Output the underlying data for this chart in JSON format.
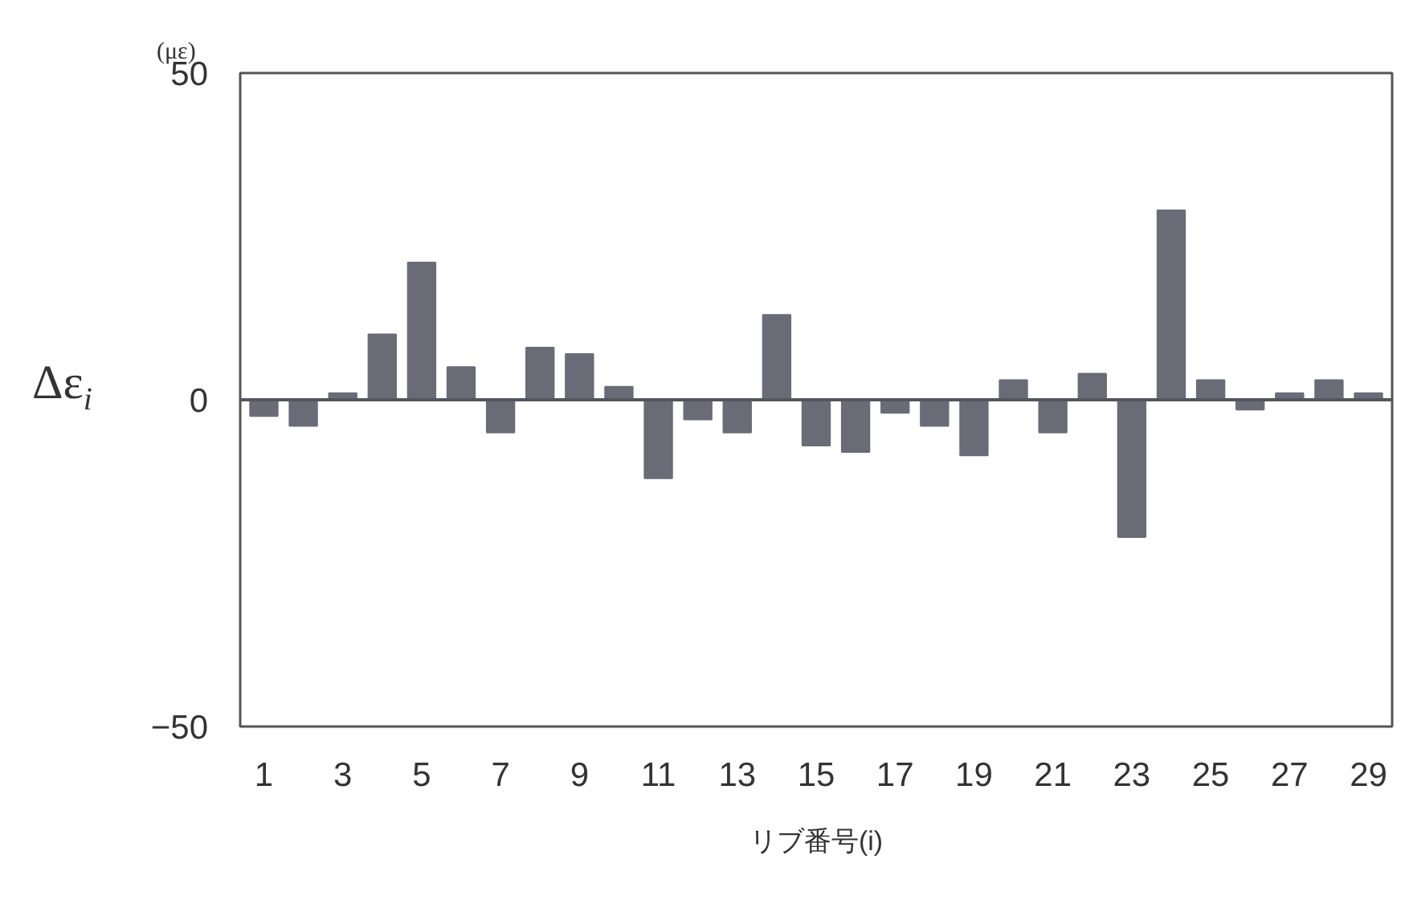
{
  "chart_data": {
    "type": "bar",
    "x": [
      1,
      2,
      3,
      4,
      5,
      6,
      7,
      8,
      9,
      10,
      11,
      12,
      13,
      14,
      15,
      16,
      17,
      18,
      19,
      20,
      21,
      22,
      23,
      24,
      25,
      26,
      27,
      28,
      29
    ],
    "values": [
      -2.5,
      -4,
      1,
      10,
      21,
      5,
      -5,
      8,
      7,
      2,
      -12,
      -3,
      -5,
      13,
      -7,
      -8,
      -2,
      -4,
      -8.5,
      3,
      -5,
      4,
      -21,
      29,
      3,
      -1.5,
      1,
      3,
      1
    ],
    "color": "#6b6b78",
    "xlim": [
      0.4,
      29.6
    ],
    "xticks": [
      1,
      3,
      5,
      7,
      9,
      11,
      13,
      15,
      17,
      19,
      21,
      23,
      25,
      27,
      29
    ],
    "ylim": [
      -50,
      50
    ],
    "yticks": [
      -50,
      0,
      50
    ],
    "xlabel": "リブ番号(i)",
    "ylabel": "Δε$_{i}$",
    "annotations": [
      "(με)"
    ],
    "ref_lines": [
      {
        "axis": "y",
        "value": 0,
        "color": "#55555f"
      }
    ],
    "grid": false
  }
}
